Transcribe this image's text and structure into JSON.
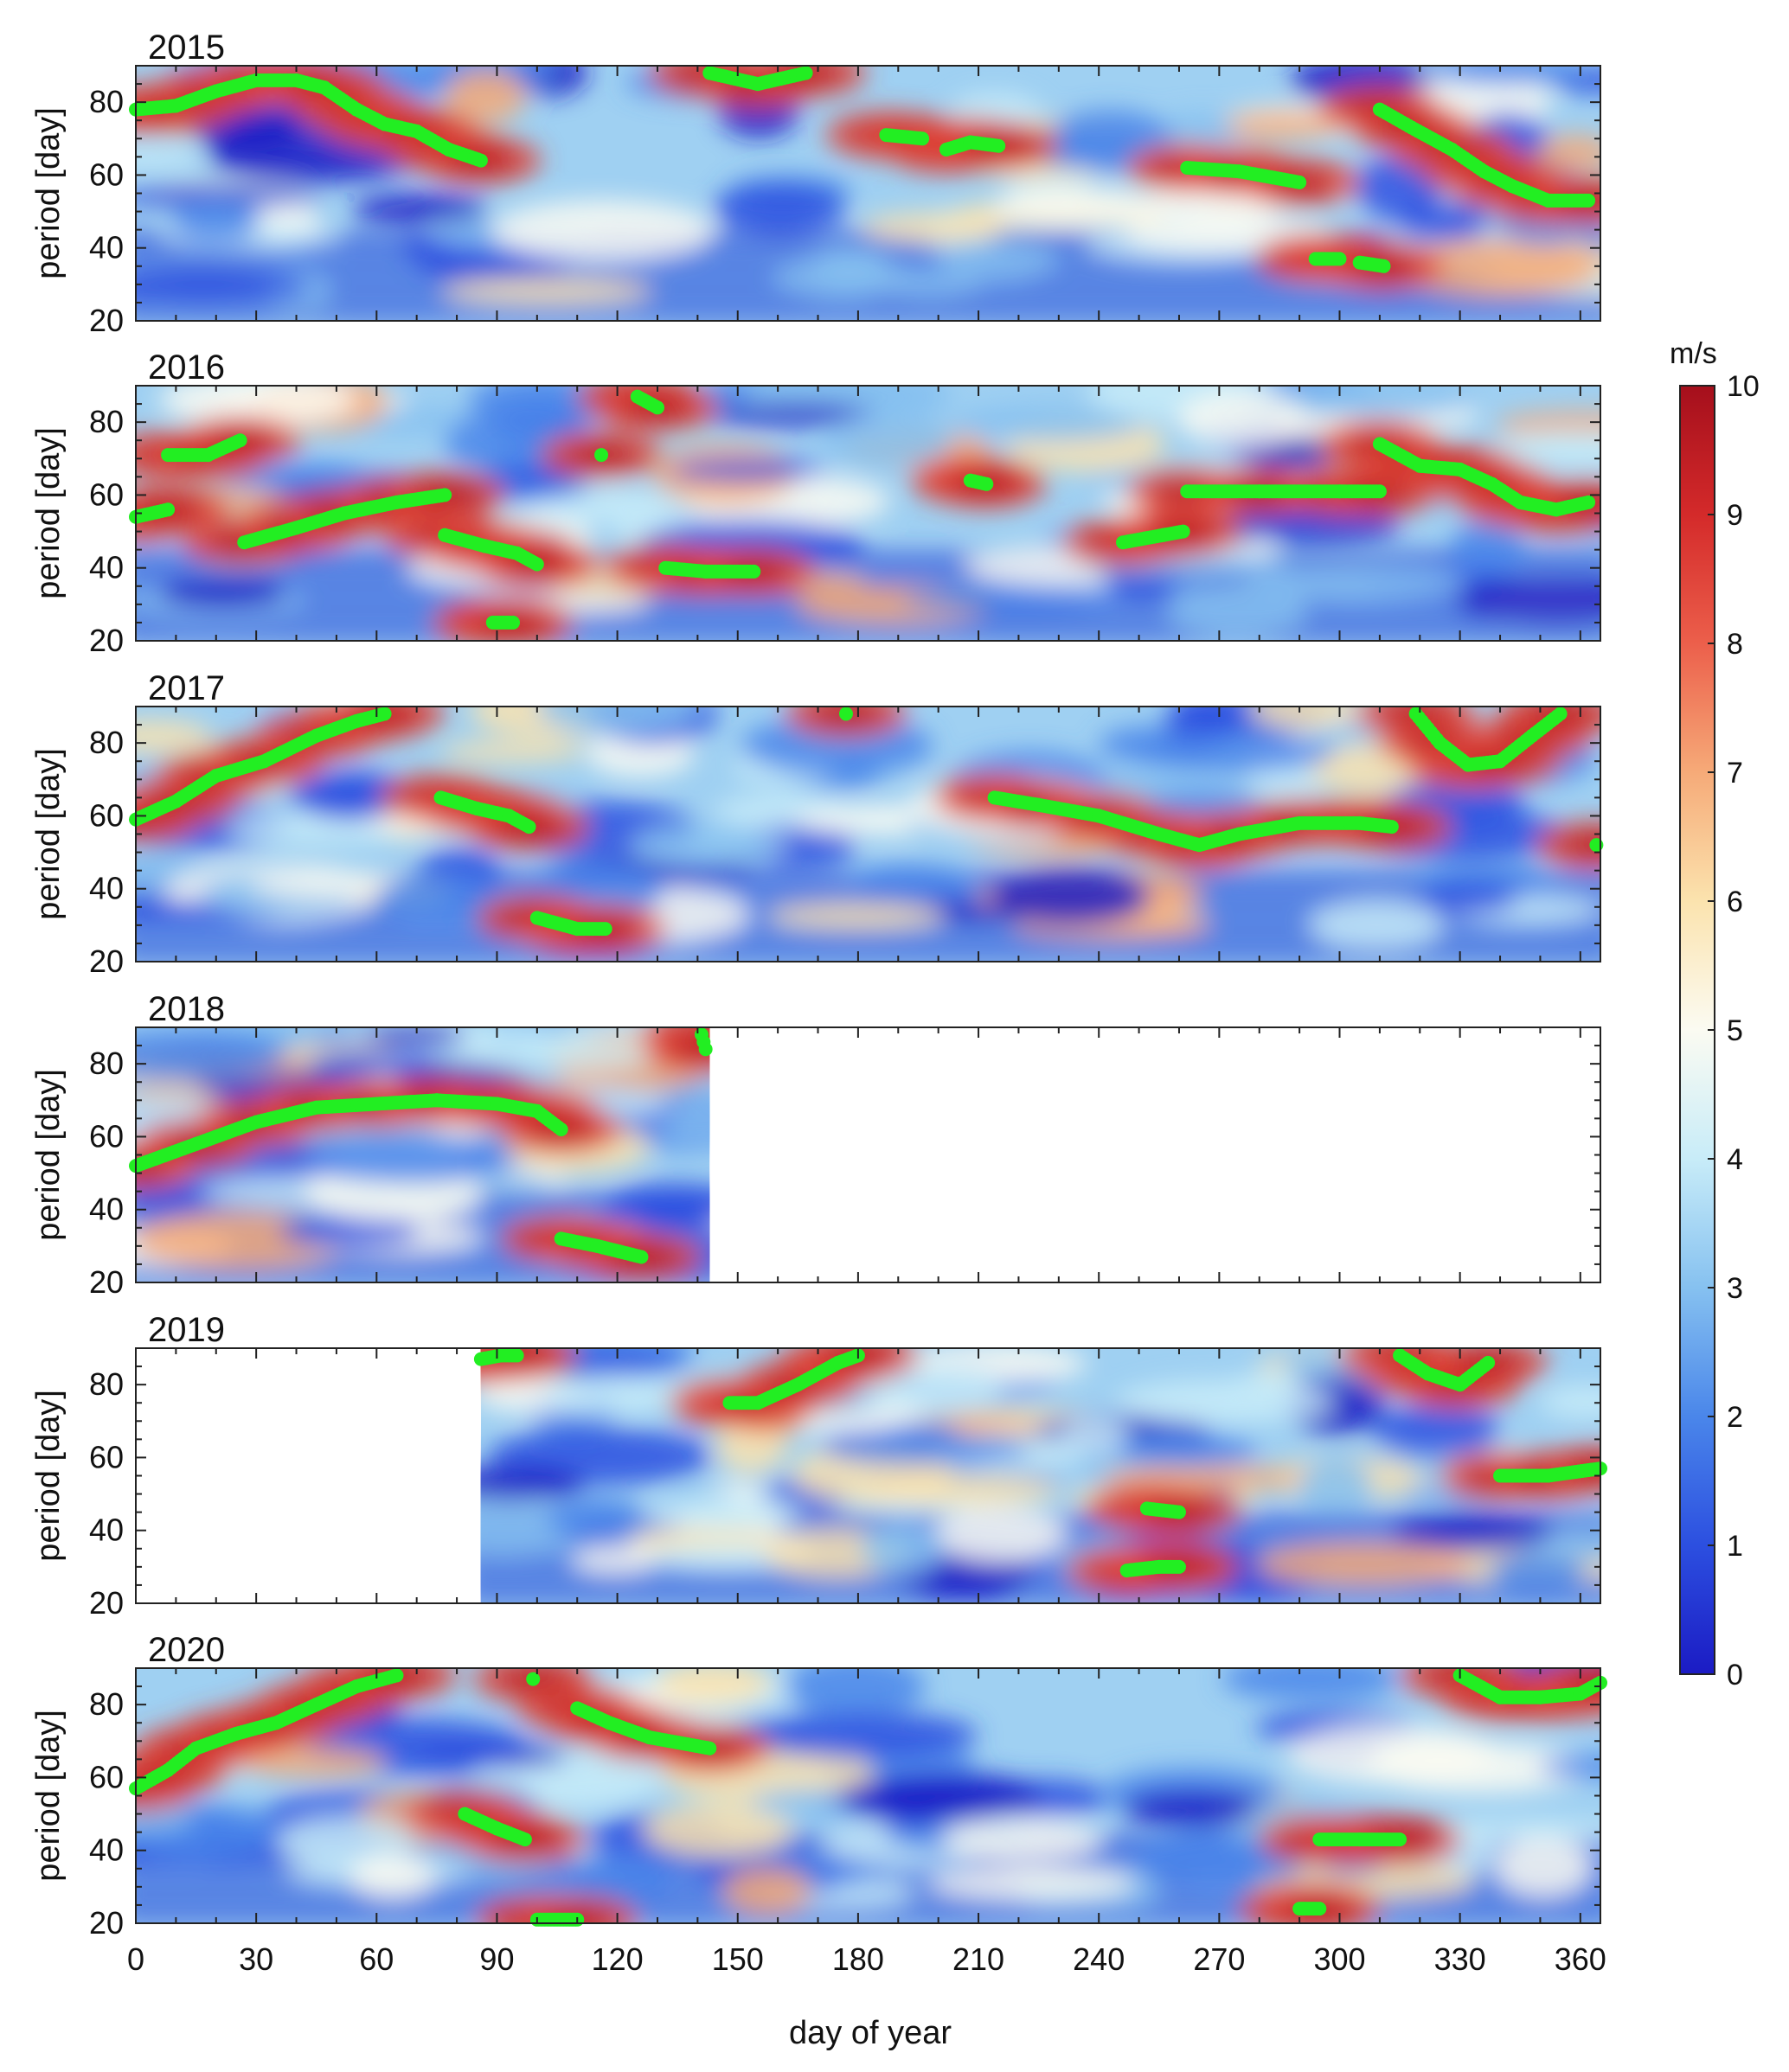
{
  "chart_data": {
    "type": "heatmap",
    "xlabel": "day of year",
    "ylabel": "period [day]",
    "xlim": [
      0,
      365
    ],
    "ylim": [
      20,
      90
    ],
    "xticks": [
      0,
      30,
      60,
      90,
      120,
      150,
      180,
      210,
      240,
      270,
      300,
      330,
      360
    ],
    "yticks": [
      20,
      40,
      60,
      80
    ],
    "colorbar": {
      "label": "m/s",
      "range": [
        0,
        10
      ],
      "ticks": [
        0,
        1,
        2,
        3,
        4,
        5,
        6,
        7,
        8,
        9,
        10
      ],
      "colormap": [
        "#1b1bc4",
        "#2c4fe0",
        "#4a86ea",
        "#86c1f0",
        "#c8ecf8",
        "#fbfbf2",
        "#fbe3ae",
        "#f6aa78",
        "#ec5f4b",
        "#d42a2a",
        "#a50f1c"
      ]
    },
    "ridge_color": "#22ee22",
    "panels": [
      {
        "year": "2015",
        "data_range": [
          0,
          365
        ],
        "ridges": [
          [
            [
              0,
              78
            ],
            [
              10,
              79
            ],
            [
              20,
              83
            ],
            [
              30,
              86
            ],
            [
              40,
              86
            ],
            [
              47,
              84
            ],
            [
              55,
              78
            ],
            [
              62,
              74
            ],
            [
              70,
              72
            ],
            [
              78,
              67
            ],
            [
              86,
              64
            ]
          ],
          [
            [
              143,
              88
            ],
            [
              155,
              85
            ],
            [
              167,
              88
            ]
          ],
          [
            [
              187,
              71
            ],
            [
              196,
              70
            ]
          ],
          [
            [
              202,
              67
            ],
            [
              208,
              69
            ],
            [
              215,
              68
            ]
          ],
          [
            [
              262,
              62
            ],
            [
              275,
              61
            ],
            [
              290,
              58
            ]
          ],
          [
            [
              294,
              37
            ],
            [
              300,
              37
            ]
          ],
          [
            [
              305,
              36
            ],
            [
              311,
              35
            ]
          ],
          [
            [
              310,
              78
            ],
            [
              318,
              73
            ],
            [
              328,
              67
            ],
            [
              336,
              61
            ],
            [
              343,
              57
            ],
            [
              352,
              53
            ],
            [
              362,
              53
            ]
          ]
        ]
      },
      {
        "year": "2016",
        "data_range": [
          0,
          365
        ],
        "ridges": [
          [
            [
              0,
              54
            ],
            [
              8,
              56
            ]
          ],
          [
            [
              8,
              71
            ],
            [
              18,
              71
            ],
            [
              26,
              75
            ]
          ],
          [
            [
              27,
              47
            ],
            [
              40,
              51
            ],
            [
              52,
              55
            ],
            [
              65,
              58
            ],
            [
              77,
              60
            ]
          ],
          [
            [
              77,
              49
            ],
            [
              87,
              46
            ],
            [
              95,
              44
            ],
            [
              100,
              41
            ]
          ],
          [
            [
              89,
              25
            ],
            [
              94,
              25
            ]
          ],
          [
            [
              116,
              71
            ]
          ],
          [
            [
              125,
              87
            ],
            [
              130,
              84
            ]
          ],
          [
            [
              132,
              40
            ],
            [
              142,
              39
            ],
            [
              154,
              39
            ]
          ],
          [
            [
              208,
              64
            ],
            [
              212,
              63
            ]
          ],
          [
            [
              246,
              47
            ],
            [
              256,
              49
            ],
            [
              261,
              50
            ]
          ],
          [
            [
              262,
              61
            ],
            [
              280,
              61
            ],
            [
              300,
              61
            ],
            [
              310,
              61
            ]
          ],
          [
            [
              310,
              74
            ],
            [
              320,
              68
            ],
            [
              330,
              67
            ],
            [
              338,
              63
            ],
            [
              345,
              58
            ],
            [
              354,
              56
            ],
            [
              362,
              58
            ]
          ]
        ]
      },
      {
        "year": "2017",
        "data_range": [
          0,
          365
        ],
        "ridges": [
          [
            [
              0,
              59
            ],
            [
              10,
              64
            ],
            [
              20,
              71
            ],
            [
              32,
              75
            ],
            [
              45,
              82
            ],
            [
              55,
              86
            ],
            [
              62,
              88
            ]
          ],
          [
            [
              76,
              65
            ],
            [
              85,
              62
            ],
            [
              93,
              60
            ],
            [
              98,
              57
            ]
          ],
          [
            [
              100,
              32
            ],
            [
              110,
              29
            ],
            [
              117,
              29
            ]
          ],
          [
            [
              177,
              88
            ]
          ],
          [
            [
              214,
              65
            ],
            [
              225,
              63
            ],
            [
              240,
              60
            ],
            [
              255,
              55
            ],
            [
              265,
              52
            ],
            [
              275,
              55
            ],
            [
              290,
              58
            ],
            [
              305,
              58
            ],
            [
              313,
              57
            ]
          ],
          [
            [
              319,
              88
            ],
            [
              325,
              80
            ],
            [
              332,
              74
            ],
            [
              340,
              75
            ],
            [
              348,
              82
            ],
            [
              355,
              88
            ]
          ],
          [
            [
              364,
              52
            ]
          ]
        ]
      },
      {
        "year": "2018",
        "data_range": [
          0,
          143
        ],
        "ridges": [
          [
            [
              0,
              52
            ],
            [
              15,
              58
            ],
            [
              30,
              64
            ],
            [
              45,
              68
            ],
            [
              60,
              69
            ],
            [
              75,
              70
            ],
            [
              90,
              69
            ],
            [
              100,
              67
            ],
            [
              106,
              62
            ]
          ],
          [
            [
              106,
              32
            ],
            [
              115,
              30
            ],
            [
              126,
              27
            ]
          ],
          [
            [
              141,
              88
            ],
            [
              142,
              84
            ]
          ]
        ]
      },
      {
        "year": "2019",
        "data_range": [
          86,
          365
        ],
        "ridges": [
          [
            [
              86,
              87
            ],
            [
              91,
              88
            ],
            [
              95,
              88
            ]
          ],
          [
            [
              148,
              75
            ],
            [
              155,
              75
            ],
            [
              165,
              80
            ],
            [
              175,
              86
            ],
            [
              180,
              88
            ]
          ],
          [
            [
              247,
              29
            ],
            [
              255,
              30
            ],
            [
              260,
              30
            ]
          ],
          [
            [
              252,
              46
            ],
            [
              260,
              45
            ]
          ],
          [
            [
              315,
              88
            ],
            [
              322,
              83
            ],
            [
              330,
              80
            ],
            [
              337,
              86
            ]
          ],
          [
            [
              340,
              55
            ],
            [
              352,
              55
            ],
            [
              365,
              57
            ]
          ]
        ]
      },
      {
        "year": "2020",
        "data_range": [
          0,
          365
        ],
        "ridges": [
          [
            [
              0,
              57
            ],
            [
              8,
              62
            ],
            [
              15,
              68
            ],
            [
              25,
              72
            ],
            [
              35,
              75
            ],
            [
              45,
              80
            ],
            [
              55,
              85
            ],
            [
              65,
              88
            ]
          ],
          [
            [
              99,
              87
            ]
          ],
          [
            [
              110,
              79
            ],
            [
              118,
              75
            ],
            [
              128,
              71
            ],
            [
              143,
              68
            ]
          ],
          [
            [
              82,
              50
            ],
            [
              90,
              46
            ],
            [
              97,
              43
            ]
          ],
          [
            [
              100,
              21
            ],
            [
              110,
              21
            ]
          ],
          [
            [
              290,
              24
            ],
            [
              295,
              24
            ]
          ],
          [
            [
              295,
              43
            ],
            [
              305,
              43
            ],
            [
              315,
              43
            ]
          ],
          [
            [
              330,
              88
            ],
            [
              340,
              82
            ],
            [
              350,
              82
            ],
            [
              360,
              83
            ],
            [
              365,
              86
            ]
          ]
        ]
      }
    ]
  }
}
